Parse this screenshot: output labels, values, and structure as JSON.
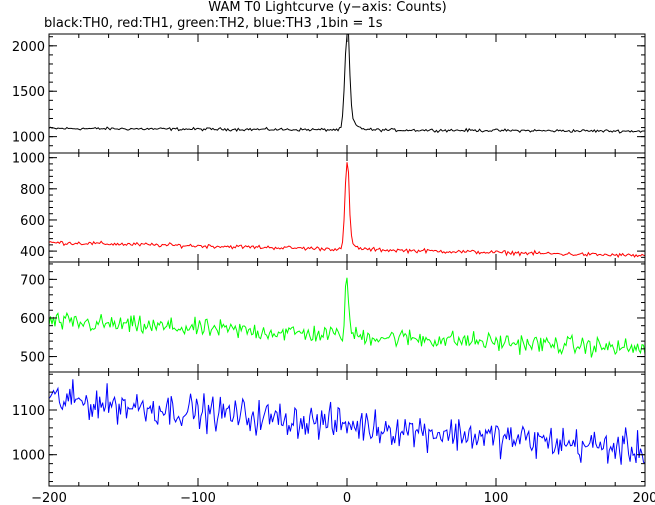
{
  "chart_data": {
    "type": "line",
    "title": "WAM T0 Lightcurve (y−axis: Counts)",
    "subtitle": "black:TH0, red:TH1, green:TH2, blue:TH3 ,1bin = 1s",
    "xlim": [
      -200,
      200
    ],
    "x_ticks": [
      -200,
      -100,
      0,
      100,
      200
    ],
    "x_tick_labels": [
      "−200",
      "−100",
      "0",
      "100",
      "200"
    ],
    "grid": false,
    "panels": [
      {
        "series": "TH0",
        "color": "#000000",
        "ylim": [
          820,
          2130
        ],
        "y_ticks": [
          1000,
          1500,
          2000
        ],
        "y_tick_labels": [
          "1000",
          "1500",
          "2000"
        ],
        "baseline_start": 1090,
        "baseline_end": 1060,
        "noise": 40,
        "peak_x": 0,
        "peak_value": 2130,
        "peak_width": 1.5,
        "tail_amp": 300,
        "tail_decay": 3.5
      },
      {
        "series": "TH1",
        "color": "#ff0000",
        "ylim": [
          330,
          1030
        ],
        "y_ticks": [
          400,
          600,
          800,
          1000
        ],
        "y_tick_labels": [
          "400",
          "600",
          "800",
          "1000"
        ],
        "baseline_start": 455,
        "baseline_end": 370,
        "noise": 32,
        "peak_x": 0,
        "peak_value": 1020,
        "peak_width": 1.3,
        "tail_amp": 90,
        "tail_decay": 3.5
      },
      {
        "series": "TH2",
        "color": "#00ff00",
        "ylim": [
          460,
          745
        ],
        "y_ticks": [
          500,
          600,
          700
        ],
        "y_tick_labels": [
          "500",
          "600",
          "700"
        ],
        "baseline_start": 590,
        "baseline_end": 520,
        "noise": 60,
        "peak_x": 0,
        "peak_value": 735,
        "peak_width": 1.2,
        "tail_amp": 0,
        "tail_decay": 3
      },
      {
        "series": "TH3",
        "color": "#0000ff",
        "ylim": [
          930,
          1185
        ],
        "y_ticks": [
          1000,
          1100
        ],
        "y_tick_labels": [
          "1000",
          "1100"
        ],
        "baseline_start": 1125,
        "baseline_end": 1010,
        "noise": 95,
        "peak_x": 0,
        "peak_value": 0,
        "peak_width": 1,
        "tail_amp": 0,
        "tail_decay": 3
      }
    ]
  }
}
